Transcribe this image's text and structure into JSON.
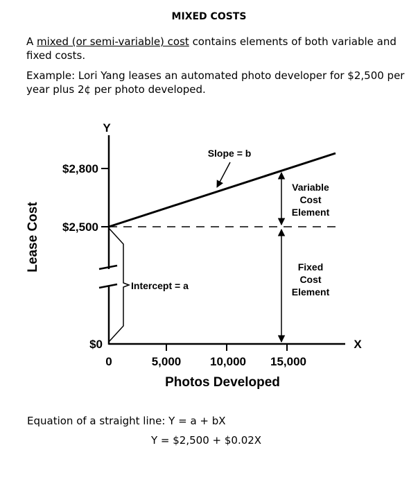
{
  "title": "MIXED COSTS",
  "intro": {
    "lead": "A ",
    "term": "mixed (or semi-variable) cost",
    "rest": " contains elements of both variable and fixed costs."
  },
  "example": "Example: Lori Yang leases an automated photo developer for $2,500 per year plus 2¢ per photo developed.",
  "diagram": {
    "y_axis_letter": "Y",
    "x_axis_letter": "X",
    "y_axis_title": "Lease Cost",
    "x_axis_title": "Photos Developed",
    "y_ticks": [
      "$2,800",
      "$2,500",
      "$0"
    ],
    "x_ticks": [
      "0",
      "5,000",
      "10,000",
      "15,000"
    ],
    "slope_label": "Slope = b",
    "intercept_label": "Intercept = a",
    "variable_label": [
      "Variable",
      "Cost",
      "Element"
    ],
    "fixed_label": [
      "Fixed",
      "Cost",
      "Element"
    ]
  },
  "equations": {
    "general": "Equation of a straight line:  Y = a + bX",
    "specific": "Y = $2,500 + $0.02X"
  }
}
